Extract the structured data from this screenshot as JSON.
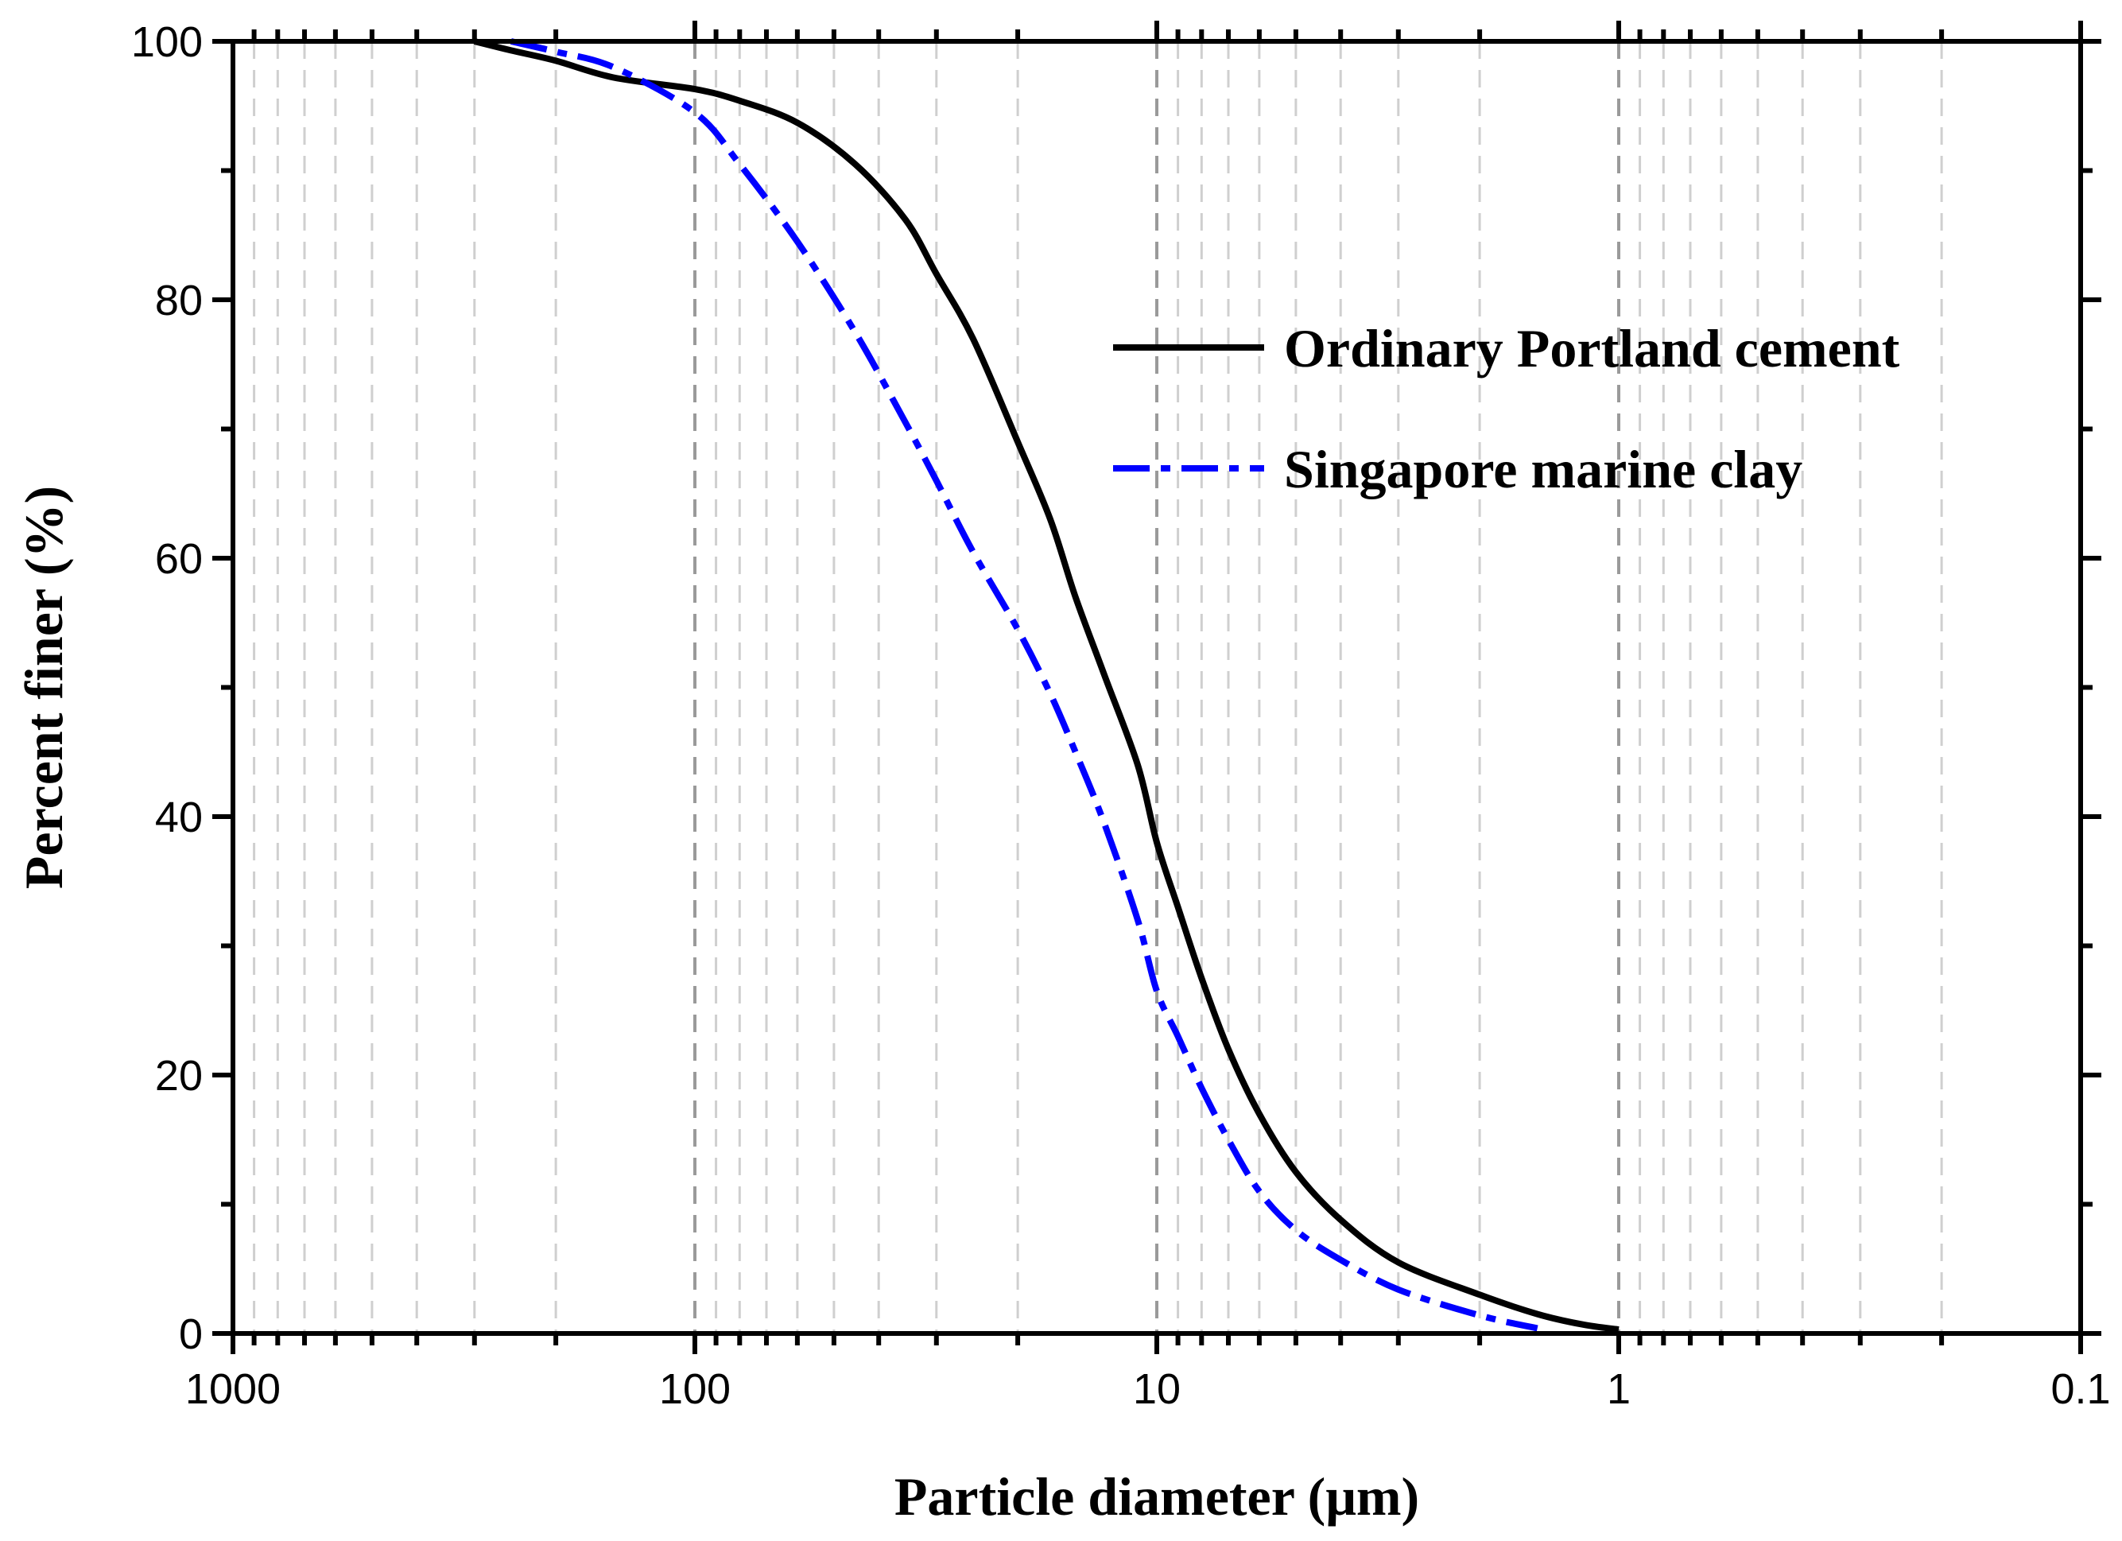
{
  "chart_data": {
    "type": "line",
    "xscale": "log",
    "x_reversed": true,
    "xlim": [
      1000,
      0.1
    ],
    "ylim": [
      0,
      100
    ],
    "xlabel": "Particle diameter (μm)",
    "ylabel": "Percent finer (%)",
    "x_tick_labels": [
      "1000",
      "100",
      "10",
      "1",
      "0.1"
    ],
    "x_tick_values": [
      1000,
      100,
      10,
      1,
      0.1
    ],
    "y_tick_labels": [
      "0",
      "20",
      "40",
      "60",
      "80",
      "100"
    ],
    "y_tick_values": [
      0,
      20,
      40,
      60,
      80,
      100
    ],
    "grid": "vertical dashed (major and minor)",
    "legend_position": "top-right",
    "series": [
      {
        "name": "Ordinary Portland cement",
        "color": "#000000",
        "style": "solid",
        "x": [
          300,
          250,
          200,
          150,
          100,
          80,
          60,
          45,
          35,
          30,
          25,
          20,
          17,
          15,
          13,
          11,
          10,
          9,
          8,
          7,
          6,
          5,
          4,
          3,
          2,
          1.5,
          1.2,
          1
        ],
        "y": [
          100,
          99.3,
          98.5,
          97.2,
          96.3,
          95.4,
          93.7,
          90.5,
          86.2,
          82,
          77,
          69,
          63,
          57,
          51,
          44,
          38,
          33,
          27.5,
          22,
          17,
          12.5,
          8.8,
          5.5,
          3,
          1.5,
          0.7,
          0.3
        ]
      },
      {
        "name": "Singapore marine clay",
        "color": "#0000ff",
        "style": "dash-dot",
        "x": [
          250,
          200,
          150,
          100,
          80,
          60,
          45,
          35,
          30,
          25,
          20,
          17,
          15,
          13,
          11,
          10,
          9,
          8,
          7,
          6,
          5,
          4,
          3,
          2,
          1.5
        ],
        "y": [
          100,
          99.2,
          98,
          94.5,
          90.5,
          84.5,
          77.5,
          70.5,
          66,
          60.5,
          54.5,
          49.5,
          45,
          39.5,
          32,
          26.5,
          23,
          19,
          15,
          11,
          8,
          5.7,
          3.4,
          1.4,
          0.4
        ]
      }
    ]
  }
}
